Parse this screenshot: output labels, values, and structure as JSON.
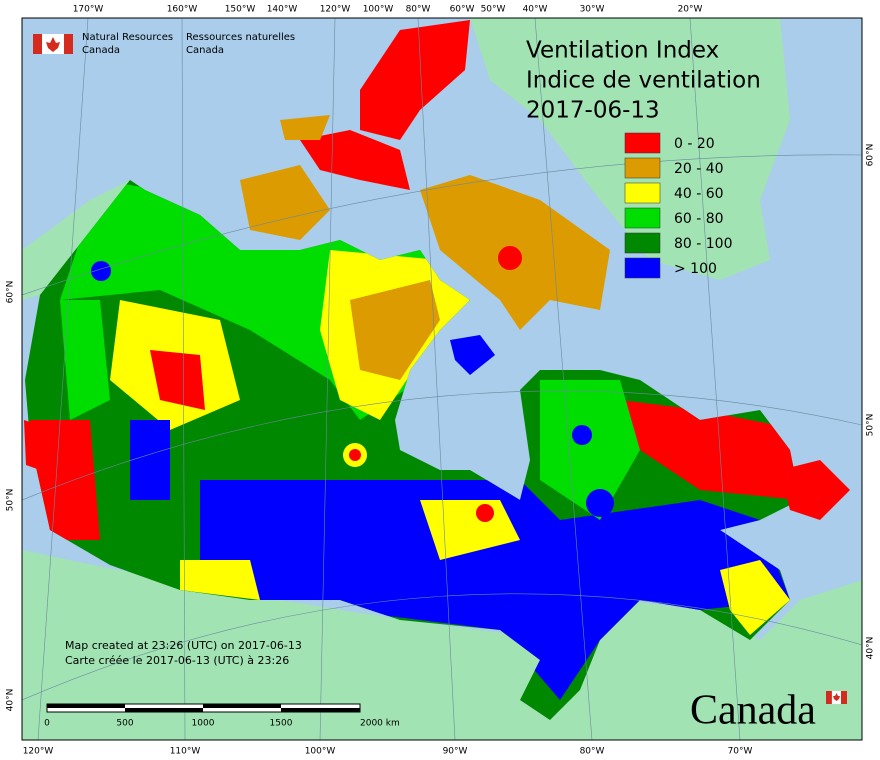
{
  "agency": {
    "en_line1": "Natural Resources",
    "en_line2": "Canada",
    "fr_line1": "Ressources naturelles",
    "fr_line2": "Canada"
  },
  "title": {
    "line1": "Ventilation Index",
    "line2": "Indice de ventilation",
    "date": "2017-06-13"
  },
  "legend": [
    {
      "label": "0 - 20",
      "color": "#ff0000"
    },
    {
      "label": "20 - 40",
      "color": "#dc9b00"
    },
    {
      "label": "40 - 60",
      "color": "#ffff00"
    },
    {
      "label": "60 - 80",
      "color": "#00dd00"
    },
    {
      "label": "80 - 100",
      "color": "#008800"
    },
    {
      "label": "> 100",
      "color": "#0000ff"
    }
  ],
  "graticule": {
    "top": [
      "170°W",
      "160°W",
      "150°W",
      "140°W",
      "120°W",
      "100°W",
      "80°W",
      "60°W",
      "50°W",
      "40°W",
      "30°W",
      "20°W"
    ],
    "bottom": [
      "120°W",
      "110°W",
      "100°W",
      "90°W",
      "80°W",
      "70°W"
    ],
    "left": [
      "60°N",
      "50°N",
      "40°N"
    ],
    "right": [
      "60°N",
      "50°N",
      "40°N"
    ]
  },
  "footer": {
    "created_en": "Map created at 23:26 (UTC) on 2017-06-13",
    "created_fr": "Carte créée le 2017-06-13 (UTC) à 23:26"
  },
  "scale_bar": [
    "0",
    "500",
    "1000",
    "1500",
    "2000 km"
  ],
  "wordmark": "Canada"
}
